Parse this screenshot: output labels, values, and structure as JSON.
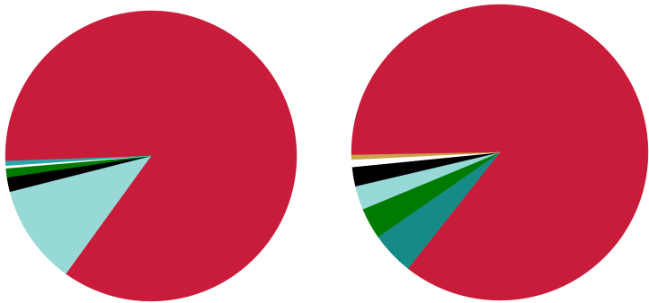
{
  "chart_data": [
    {
      "type": "pie",
      "start_angle_deg": 178,
      "direction": "clockwise",
      "slices": [
        {
          "value": 85.5,
          "color": "#C91C3A"
        },
        {
          "value": 11.1,
          "color": "#96D9D7"
        },
        {
          "value": 1.6,
          "color": "#000000"
        },
        {
          "value": 1.0,
          "color": "#007A00"
        },
        {
          "value": 0.3,
          "color": "#FFFFFF"
        },
        {
          "value": 0.5,
          "color": "#2AA6A8"
        }
      ]
    },
    {
      "type": "pie",
      "start_angle_deg": 179,
      "direction": "clockwise",
      "slices": [
        {
          "value": 85.9,
          "color": "#C91C3A"
        },
        {
          "value": 4.7,
          "color": "#168A87"
        },
        {
          "value": 3.4,
          "color": "#007A00"
        },
        {
          "value": 2.6,
          "color": "#96D9D7"
        },
        {
          "value": 2.1,
          "color": "#000000"
        },
        {
          "value": 0.8,
          "color": "#FFFFFF"
        },
        {
          "value": 0.5,
          "color": "#C9A24A"
        }
      ]
    }
  ]
}
